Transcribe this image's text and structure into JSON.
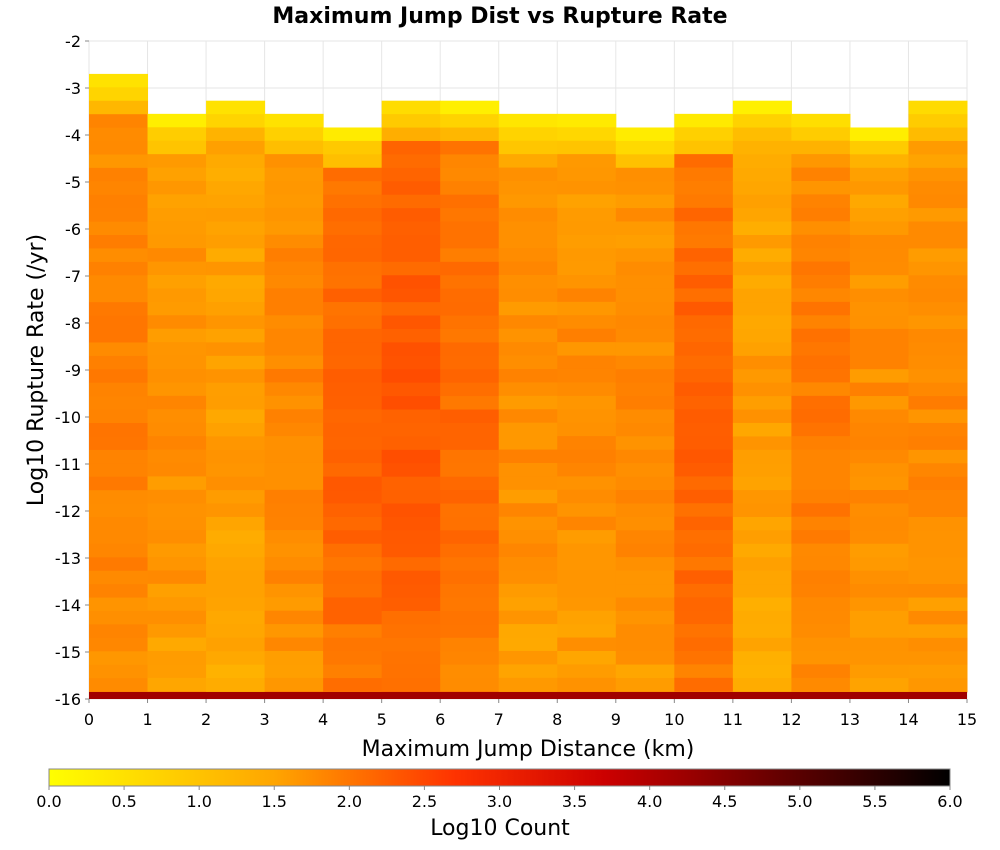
{
  "chart_data": {
    "type": "heatmap",
    "title": "Maximum Jump Dist vs Rupture Rate",
    "xlabel": "Maximum Jump Distance (km)",
    "ylabel": "Log10 Rupture Rate (/yr)",
    "xlim": [
      0,
      15
    ],
    "ylim": [
      -16,
      -2
    ],
    "x_ticks": [
      "0",
      "1",
      "2",
      "3",
      "4",
      "5",
      "6",
      "7",
      "8",
      "9",
      "10",
      "11",
      "12",
      "13",
      "14",
      "15"
    ],
    "y_ticks": [
      "-2",
      "-3",
      "-4",
      "-5",
      "-6",
      "-7",
      "-8",
      "-9",
      "-10",
      "-11",
      "-12",
      "-13",
      "-14",
      "-15",
      "-16"
    ],
    "grid": true,
    "x_bin_width_km": 1,
    "y_bin_height_log10": 0.2857,
    "top_occupied_bin_upper_edge": [
      -2.7,
      -3.55,
      -3.27,
      -3.55,
      -3.84,
      -3.27,
      -3.27,
      -3.55,
      -3.55,
      -3.84,
      -3.55,
      -3.27,
      -3.55,
      -3.84,
      -3.27
    ],
    "column_mean_log10_count": [
      1.65,
      1.5,
      1.35,
      1.6,
      1.95,
      2.05,
      1.85,
      1.5,
      1.55,
      1.55,
      1.95,
      1.35,
      1.7,
      1.5,
      1.55
    ],
    "bottom_row_y_range": [
      -16,
      -15.85
    ],
    "bottom_row_log10_count": 4.2,
    "colorbar": {
      "label": "Log10 Count",
      "min": 0.0,
      "max": 6.0,
      "ticks": [
        "0.0",
        "0.5",
        "1.0",
        "1.5",
        "2.0",
        "2.5",
        "3.0",
        "3.5",
        "4.0",
        "4.5",
        "5.0",
        "5.5",
        "6.0"
      ],
      "colors": [
        "#ffff00",
        "#ffa500",
        "#ff3300",
        "#cc0000",
        "#000000"
      ],
      "stops": [
        0,
        1.5,
        2.7,
        3.7,
        6.0
      ]
    }
  }
}
